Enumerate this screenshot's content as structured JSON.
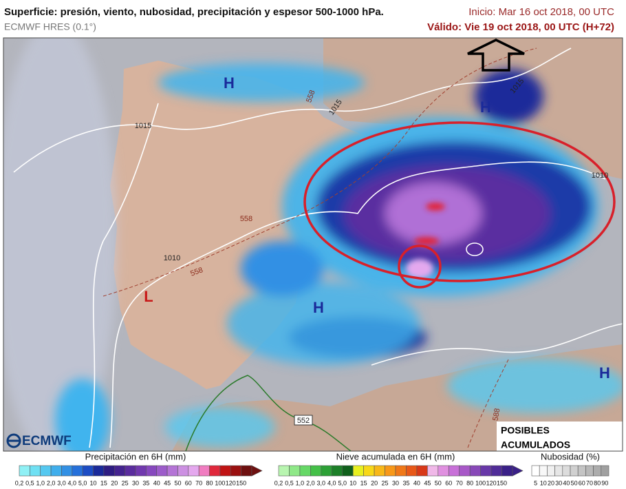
{
  "header": {
    "title": "Superficie: presión, viento, nubosidad, precipitación y espesor 500-1000 hPa.",
    "model": "ECMWF HRES (0.1°)",
    "init": "Inicio: Mar 16 oct 2018, 00 UTC",
    "valid": "Válido: Vie 19 oct 2018, 00 UTC (H+72)"
  },
  "map": {
    "labels": [
      "H",
      "H",
      "H",
      "H",
      "L",
      "1015",
      "1015",
      "1010",
      "1010",
      "1015",
      "558",
      "558",
      "558",
      "552",
      "588"
    ],
    "annotation": [
      "POSIBLES",
      "ACUMULADOS"
    ],
    "logo": "ECMWF"
  },
  "legends": [
    {
      "title": "Precipitación en 6H (mm)",
      "ticks": [
        "0,2",
        "0,5",
        "1,0",
        "2,0",
        "3,0",
        "4,0",
        "5,0",
        "10",
        "15",
        "20",
        "25",
        "30",
        "35",
        "40",
        "45",
        "50",
        "60",
        "70",
        "80",
        "100",
        "120",
        "150"
      ],
      "colors": [
        "#8ff0f5",
        "#6fe0f3",
        "#55c8f0",
        "#40aeec",
        "#3290e4",
        "#2570da",
        "#1c4cc4",
        "#1a2a9a",
        "#2e1c82",
        "#44238f",
        "#5a2c9e",
        "#7038ae",
        "#8648be",
        "#9c5cca",
        "#b474d6",
        "#cc90e2",
        "#e4a8ee",
        "#f07cc0",
        "#e0283c",
        "#c01414",
        "#9a1010",
        "#6e1010"
      ]
    },
    {
      "title": "Nieve acumulada en 6H (mm)",
      "ticks": [
        "0,2",
        "0,5",
        "1,0",
        "2,0",
        "3,0",
        "4,0",
        "5,0",
        "10",
        "15",
        "20",
        "25",
        "30",
        "35",
        "40",
        "45",
        "50",
        "60",
        "70",
        "80",
        "100",
        "120",
        "150"
      ],
      "colors": [
        "#b8f5b0",
        "#8fe888",
        "#66d866",
        "#44c048",
        "#2ca036",
        "#1c8028",
        "#10601c",
        "#e8f020",
        "#f8d818",
        "#f8b818",
        "#f89818",
        "#f07818",
        "#e85818",
        "#d83818",
        "#f0b8e8",
        "#e090e0",
        "#c870d8",
        "#a858c8",
        "#8848b8",
        "#6838a8",
        "#502c98",
        "#3a2088"
      ]
    },
    {
      "title": "Nubosidad (%)",
      "ticks": [
        "5",
        "10",
        "20",
        "30",
        "40",
        "50",
        "60",
        "70",
        "80",
        "90"
      ],
      "colors": [
        "#ffffff",
        "#f8f8f8",
        "#f0f0f0",
        "#e6e6e6",
        "#dcdcdc",
        "#d0d0d0",
        "#c4c4c4",
        "#b8b8b8",
        "#acacac",
        "#a0a0a0"
      ]
    }
  ]
}
